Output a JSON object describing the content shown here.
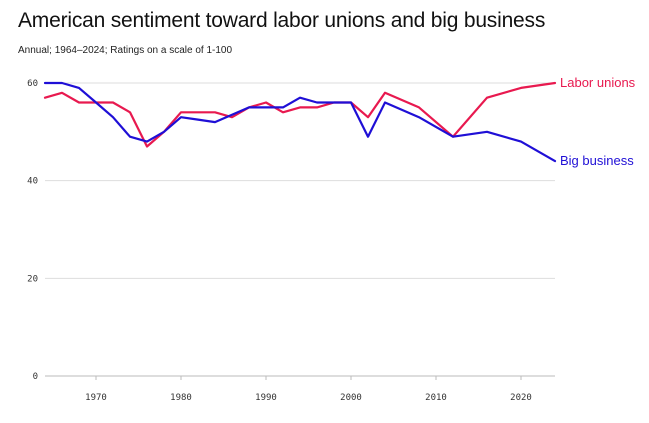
{
  "chart_data": {
    "type": "line",
    "title": "American sentiment toward labor unions and big business",
    "subtitle": "Annual; 1964–2024; Ratings on a scale of 1-100",
    "xlabel": "",
    "ylabel": "",
    "xlim": [
      1964,
      2024
    ],
    "ylim": [
      0,
      60
    ],
    "x_ticks": [
      1970,
      1980,
      1990,
      2000,
      2010,
      2020
    ],
    "y_ticks": [
      0,
      20,
      40,
      60
    ],
    "grid": "horizontal",
    "legend": "direct-labels-right",
    "series": [
      {
        "name": "Labor unions",
        "color": "#e8194f",
        "points": [
          [
            1964,
            57
          ],
          [
            1966,
            58
          ],
          [
            1968,
            56
          ],
          [
            1970,
            56
          ],
          [
            1972,
            56
          ],
          [
            1974,
            54
          ],
          [
            1976,
            47
          ],
          [
            1978,
            50
          ],
          [
            1980,
            54
          ],
          [
            1982,
            54
          ],
          [
            1984,
            54
          ],
          [
            1986,
            53
          ],
          [
            1988,
            55
          ],
          [
            1990,
            56
          ],
          [
            1992,
            54
          ],
          [
            1994,
            55
          ],
          [
            1996,
            55
          ],
          [
            1998,
            56
          ],
          [
            2000,
            56
          ],
          [
            2002,
            53
          ],
          [
            2004,
            58
          ],
          [
            2008,
            55
          ],
          [
            2012,
            49
          ],
          [
            2016,
            57
          ],
          [
            2020,
            59
          ],
          [
            2024,
            60
          ]
        ]
      },
      {
        "name": "Big business",
        "color": "#1f0fd6",
        "points": [
          [
            1964,
            60
          ],
          [
            1966,
            60
          ],
          [
            1968,
            59
          ],
          [
            1970,
            56
          ],
          [
            1972,
            53
          ],
          [
            1974,
            49
          ],
          [
            1976,
            48
          ],
          [
            1978,
            50
          ],
          [
            1980,
            53
          ],
          [
            1982,
            52.5
          ],
          [
            1984,
            52
          ],
          [
            1986,
            53.5
          ],
          [
            1988,
            55
          ],
          [
            1990,
            55
          ],
          [
            1992,
            55
          ],
          [
            1994,
            57
          ],
          [
            1996,
            56
          ],
          [
            1998,
            56
          ],
          [
            2000,
            56
          ],
          [
            2002,
            49
          ],
          [
            2004,
            56
          ],
          [
            2008,
            53
          ],
          [
            2012,
            49
          ],
          [
            2016,
            50
          ],
          [
            2020,
            48
          ],
          [
            2024,
            44
          ]
        ]
      }
    ]
  }
}
